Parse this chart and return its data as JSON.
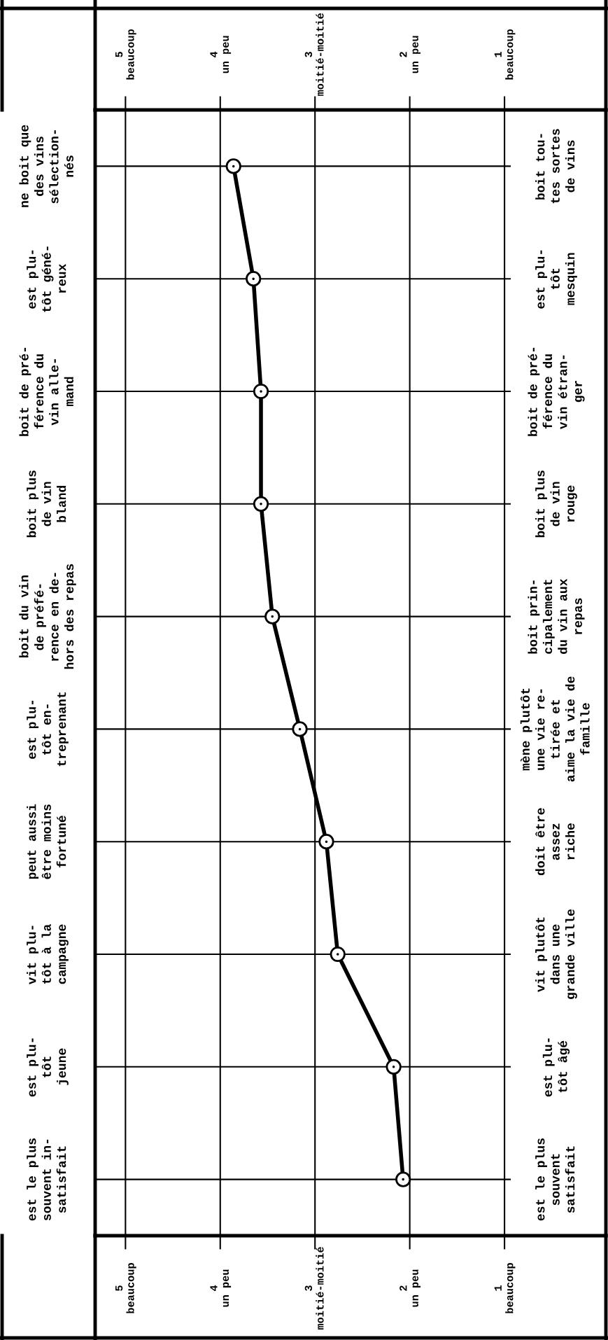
{
  "chart_data": {
    "type": "line",
    "orientation": "horizontal",
    "categories": [
      "ne boit que\ndes vins\nsélection-\nnés",
      "est plu-\ntôt géné-\nreux",
      "boit de pré-\nférence du\nvin alle-\nmand",
      "boit plus\nde vin\nbland",
      "boit du vin\nde préfé-\nrence en de-\nhors des repas",
      "est plu-\ntôt en-\ntreprenant",
      "peut aussi\nêtre moins\nfortuné",
      "vit plu-\ntôt à la\ncampagne",
      "est plu-\ntôt\njeune",
      "est le plus\nsouvent in-\nsatisfait"
    ],
    "y2_categories": [
      "boit tou-\ntes sortes\nde vins",
      "est plu-\ntôt\nmesquin",
      "boit de pré-\nférence du\nvin étran-\nger",
      "boit plus\nde vin\nrouge",
      "boit prin-\ncipalement\ndu vin aux\nrepas",
      "mène plutôt\nune vie re-\ntirée et\naime la vie de\nfamille",
      "doit être\nassez\nriche",
      "vit plutôt\ndans une\ngrande ville",
      "est plu-\ntôt âgé",
      "est le plus\nsouvent\nsatisfait"
    ],
    "values": [
      3.86,
      3.65,
      3.57,
      3.57,
      3.45,
      3.16,
      2.88,
      2.76,
      2.17,
      2.07
    ],
    "color": "#000000",
    "marker": "circle",
    "line_style": "solid",
    "grid": true,
    "legend": false,
    "xlim": [
      5.32,
      -0.07
    ],
    "xticks": [
      {
        "value": 5,
        "label": "5\nbeaucoup"
      },
      {
        "value": 4,
        "label": "4\nun peu"
      },
      {
        "value": 3,
        "label": "3\nmoitié-moitié"
      },
      {
        "value": 2,
        "label": "2\nun peu"
      },
      {
        "value": 1,
        "label": "1\nbeaucoup"
      }
    ],
    "x2lim": [
      5.32,
      -0.07
    ],
    "x2ticks": [
      {
        "value": 5,
        "label": "5\nbeaucoup"
      },
      {
        "value": 4,
        "label": "4\nun peu"
      },
      {
        "value": 3,
        "label": "3\nmoitié-moitié"
      },
      {
        "value": 2,
        "label": "2\nun peu"
      },
      {
        "value": 1,
        "label": "1\nbeaucoup"
      }
    ]
  }
}
